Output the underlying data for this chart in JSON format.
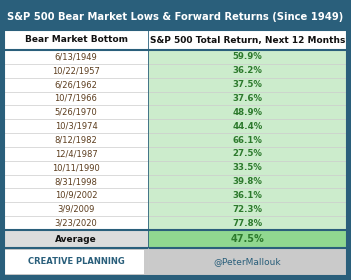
{
  "title": "S&P 500 Bear Market Lows & Forward Returns (Since 1949)",
  "col1_header": "Bear Market Bottom",
  "col2_header": "S&P 500 Total Return, Next 12 Months",
  "dates": [
    "6/13/1949",
    "10/22/1957",
    "6/26/1962",
    "10/7/1966",
    "5/26/1970",
    "10/3/1974",
    "8/12/1982",
    "12/4/1987",
    "10/11/1990",
    "8/31/1998",
    "10/9/2002",
    "3/9/2009",
    "3/23/2020"
  ],
  "returns": [
    "59.9%",
    "36.2%",
    "37.5%",
    "37.6%",
    "48.9%",
    "44.4%",
    "66.1%",
    "27.5%",
    "33.5%",
    "39.8%",
    "36.1%",
    "72.3%",
    "77.8%"
  ],
  "avg_label": "Average",
  "avg_value": "47.5%",
  "title_bg": "#2A5F7B",
  "title_fg": "#FFFFFF",
  "header_bg": "#FFFFFF",
  "header_fg": "#111111",
  "col1_bg": "#FFFFFF",
  "col1_fg": "#5C3D1E",
  "col2_bg": "#CCECCC",
  "col2_fg": "#2D7A2D",
  "avg_bg_col1": "#DCDCDC",
  "avg_bg_col2": "#90D890",
  "avg_fg_col1": "#111111",
  "avg_fg_col2": "#2D7A2D",
  "footer_bg": "#CACACA",
  "footer_text_left": "CREATIVE PLANNING",
  "footer_text_right": "@PeterMallouk",
  "border_color": "#2A5F7B",
  "grid_color": "#CCCCCC",
  "col_split": 0.42
}
